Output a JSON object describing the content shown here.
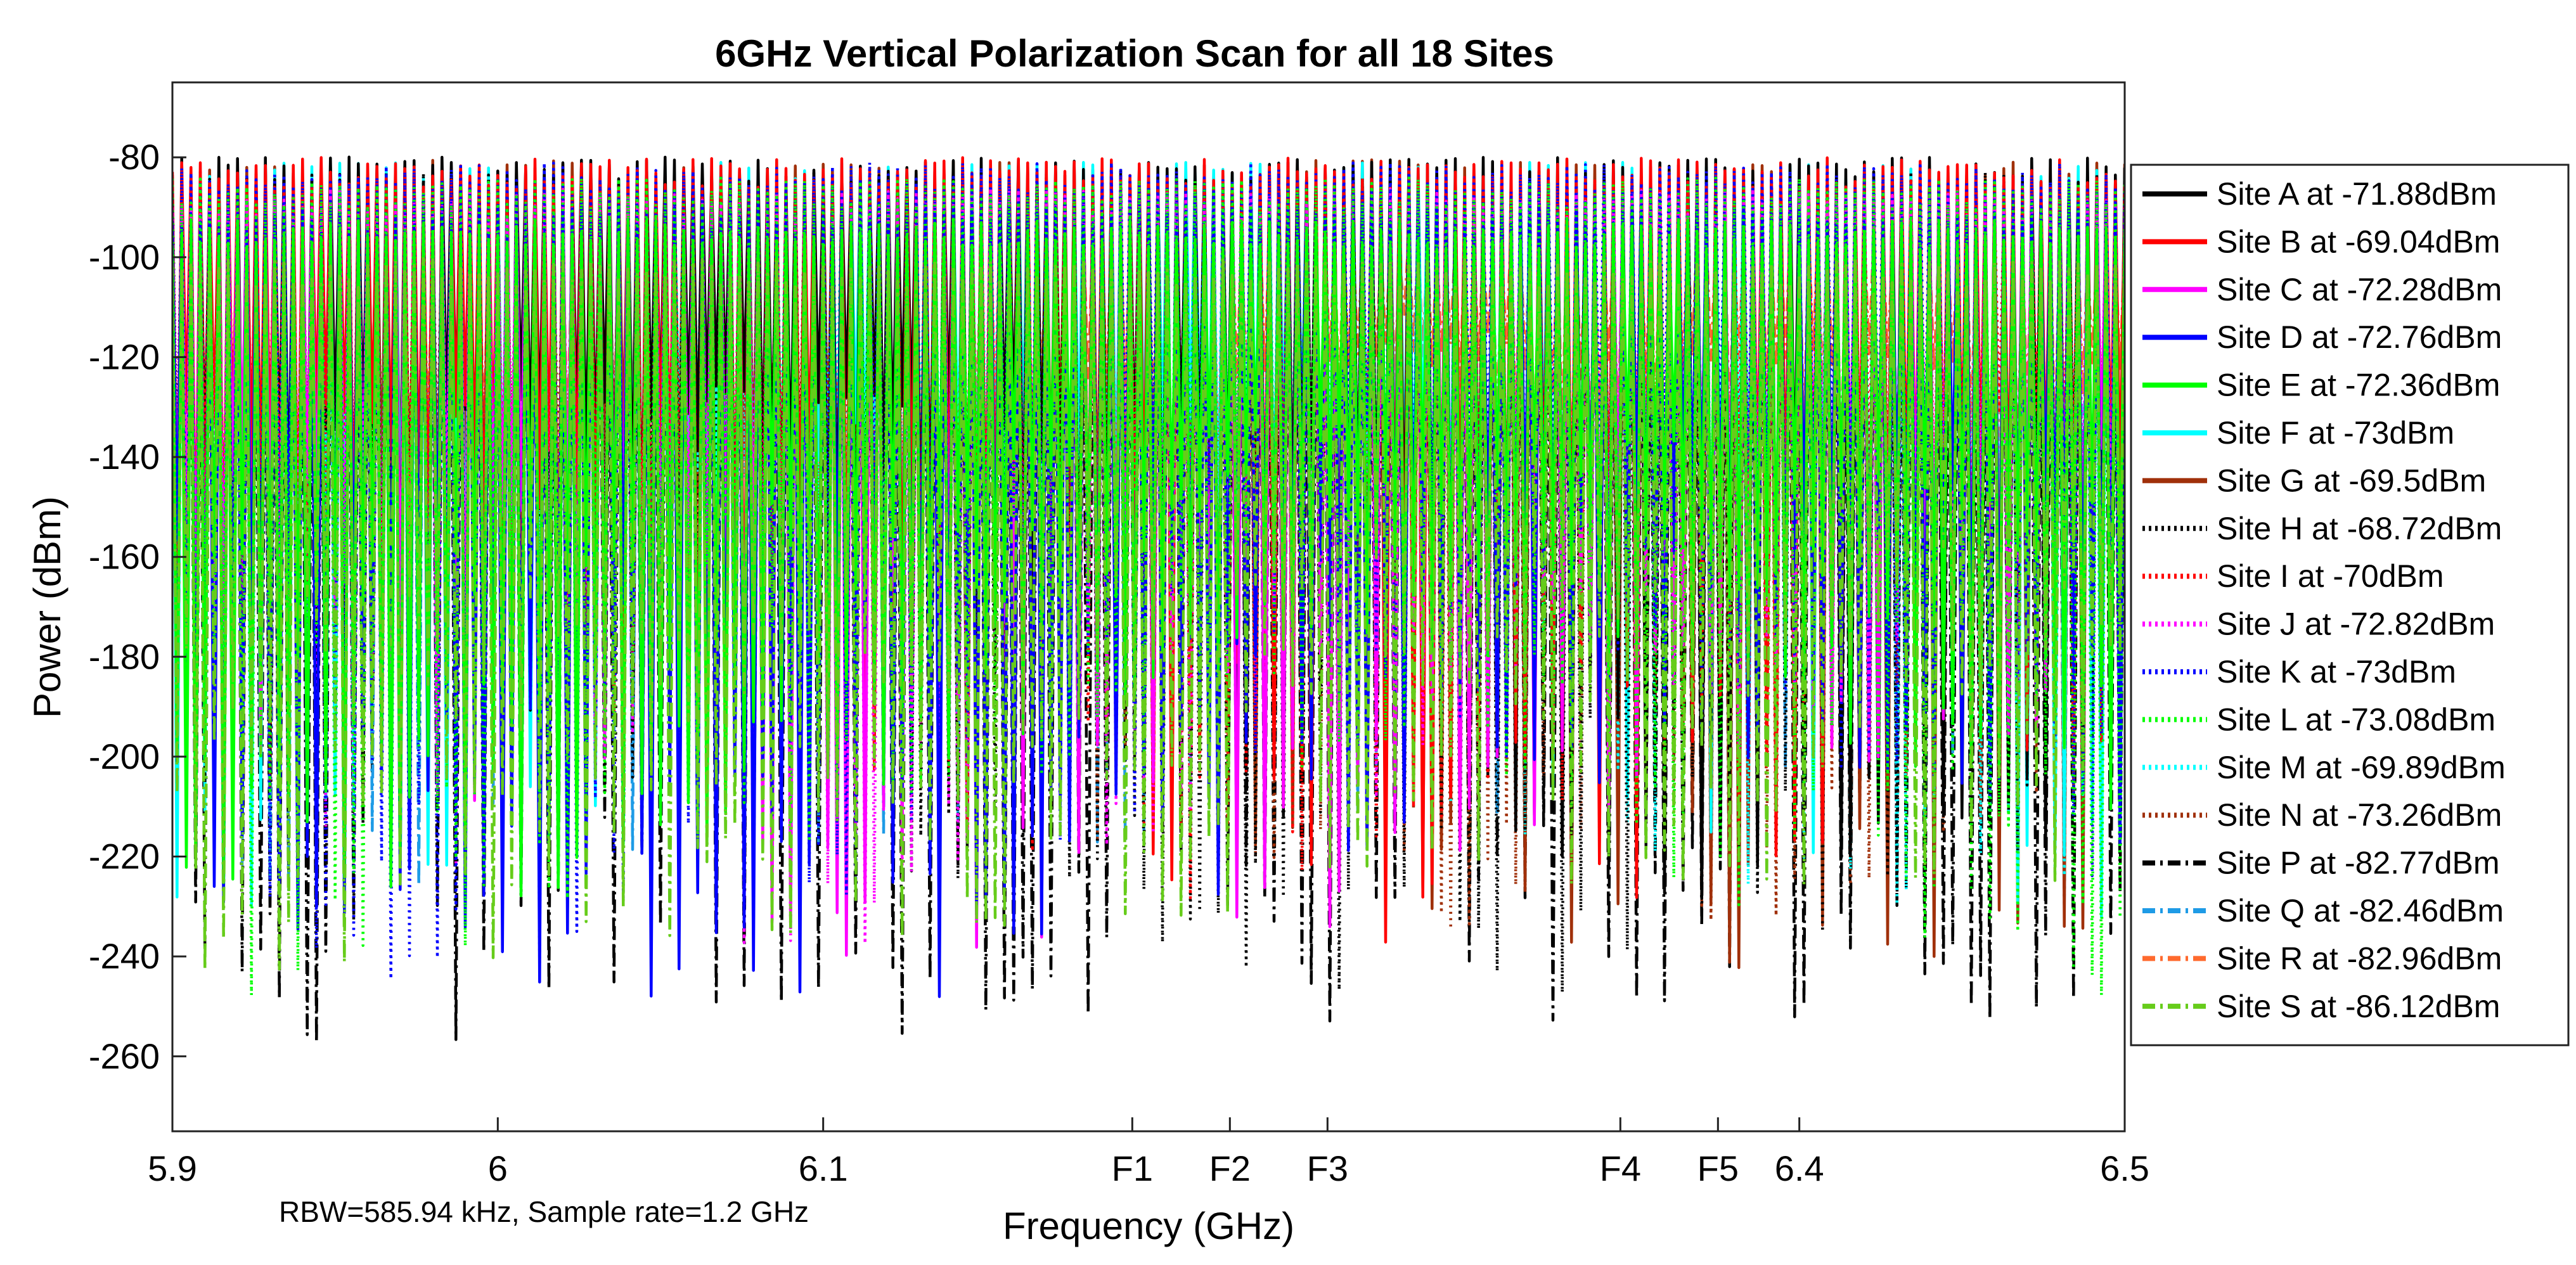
{
  "chart_data": {
    "type": "line",
    "title": "6GHz Vertical Polarization Scan for all 18 Sites",
    "xlabel": "Frequency (GHz)",
    "ylabel": "Power (dBm)",
    "xlim": [
      5.9,
      6.5
    ],
    "ylim": [
      -275,
      -65
    ],
    "x_ticks": [
      {
        "value": 5.9,
        "label": "5.9"
      },
      {
        "value": 6.0,
        "label": "6"
      },
      {
        "value": 6.1,
        "label": "6.1"
      },
      {
        "value": 6.195,
        "label": "F1"
      },
      {
        "value": 6.225,
        "label": "F2"
      },
      {
        "value": 6.255,
        "label": "F3"
      },
      {
        "value": 6.345,
        "label": "F4"
      },
      {
        "value": 6.375,
        "label": "F5"
      },
      {
        "value": 6.4,
        "label": "6.4"
      },
      {
        "value": 6.5,
        "label": "6.5"
      }
    ],
    "y_ticks": [
      {
        "value": -80,
        "label": "-80"
      },
      {
        "value": -100,
        "label": "-100"
      },
      {
        "value": -120,
        "label": "-120"
      },
      {
        "value": -140,
        "label": "-140"
      },
      {
        "value": -160,
        "label": "-160"
      },
      {
        "value": -180,
        "label": "-180"
      },
      {
        "value": -200,
        "label": "-200"
      },
      {
        "value": -220,
        "label": "-220"
      },
      {
        "value": -240,
        "label": "-240"
      },
      {
        "value": -260,
        "label": "-260"
      }
    ],
    "annotation": "RBW=585.94 kHz, Sample rate=1.2 GHz",
    "legend_position": "right",
    "series": [
      {
        "name": "Site A at -71.88dBm",
        "color": "#000000",
        "dash": "solid",
        "peak": -71.88
      },
      {
        "name": "Site B at -69.04dBm",
        "color": "#ff0000",
        "dash": "solid",
        "peak": -69.04
      },
      {
        "name": "Site C at -72.28dBm",
        "color": "#ff00ff",
        "dash": "solid",
        "peak": -72.28
      },
      {
        "name": "Site D at -72.76dBm",
        "color": "#0000ff",
        "dash": "solid",
        "peak": -72.76
      },
      {
        "name": "Site E at -72.36dBm",
        "color": "#00ff00",
        "dash": "solid",
        "peak": -72.36
      },
      {
        "name": "Site F at -73dBm",
        "color": "#00ffff",
        "dash": "solid",
        "peak": -73
      },
      {
        "name": "Site G at -69.5dBm",
        "color": "#a0300a",
        "dash": "solid",
        "peak": -69.5
      },
      {
        "name": "Site H at -68.72dBm",
        "color": "#000000",
        "dash": "dotted",
        "peak": -68.72
      },
      {
        "name": "Site I at -70dBm",
        "color": "#ff0000",
        "dash": "dotted",
        "peak": -70
      },
      {
        "name": "Site J at -72.82dBm",
        "color": "#ff00ff",
        "dash": "dotted",
        "peak": -72.82
      },
      {
        "name": "Site K at -73dBm",
        "color": "#0000ff",
        "dash": "dotted",
        "peak": -73
      },
      {
        "name": "Site L at -73.08dBm",
        "color": "#00ff00",
        "dash": "dotted",
        "peak": -73.08
      },
      {
        "name": "Site M at -69.89dBm",
        "color": "#00ffff",
        "dash": "dotted",
        "peak": -69.89
      },
      {
        "name": "Site N at -73.26dBm",
        "color": "#a0300a",
        "dash": "dotted",
        "peak": -73.26
      },
      {
        "name": "Site P at -82.77dBm",
        "color": "#000000",
        "dash": "dashdot",
        "peak": -82.77
      },
      {
        "name": "Site Q at -82.46dBm",
        "color": "#1e9be6",
        "dash": "dashdot",
        "peak": -82.46
      },
      {
        "name": "Site R at -82.96dBm",
        "color": "#ff6a2e",
        "dash": "dashdot",
        "peak": -82.96
      },
      {
        "name": "Site S at -86.12dBm",
        "color": "#66cc1a",
        "dash": "dashdot",
        "peak": -86.12
      }
    ]
  }
}
